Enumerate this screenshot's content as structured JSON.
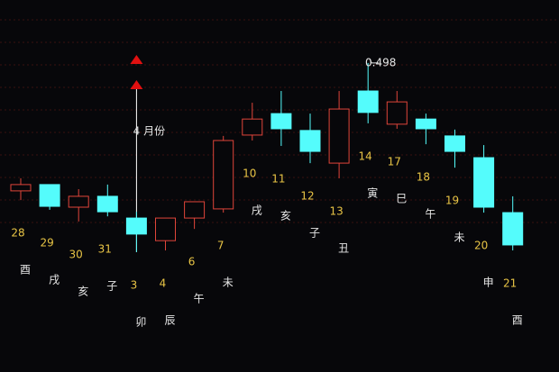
{
  "chart_data": {
    "type": "candlestick",
    "categories": [
      "28",
      "29",
      "30",
      "31",
      "3",
      "4",
      "6",
      "7",
      "10",
      "11",
      "12",
      "13",
      "14",
      "17",
      "18",
      "19",
      "20",
      "21"
    ],
    "branches": [
      "酉",
      "戌",
      "亥",
      "子",
      "卯",
      "辰",
      "午",
      "未",
      "戌",
      "亥",
      "子",
      "丑",
      "寅",
      "巳",
      "午",
      "未",
      "申",
      "酉"
    ],
    "open": [
      0.4533,
      0.4555,
      0.4476,
      0.4514,
      0.4438,
      0.4359,
      0.4438,
      0.447,
      0.4728,
      0.4803,
      0.4744,
      0.463,
      0.4882,
      0.4766,
      0.4784,
      0.4725,
      0.4649,
      0.4457
    ],
    "high": [
      0.4577,
      0.4555,
      0.4539,
      0.4555,
      0.446,
      0.4438,
      0.4495,
      0.4725,
      0.4841,
      0.4882,
      0.4803,
      0.4882,
      0.498,
      0.4882,
      0.4803,
      0.4747,
      0.4693,
      0.4514
    ],
    "low": [
      0.4501,
      0.4467,
      0.4426,
      0.4444,
      0.4319,
      0.4325,
      0.44,
      0.4457,
      0.4709,
      0.469,
      0.463,
      0.4577,
      0.4769,
      0.475,
      0.4696,
      0.4614,
      0.4457,
      0.4325
    ],
    "close": [
      0.4555,
      0.4479,
      0.4514,
      0.446,
      0.4382,
      0.4438,
      0.4495,
      0.4709,
      0.4784,
      0.475,
      0.4671,
      0.4819,
      0.4807,
      0.4844,
      0.475,
      0.4671,
      0.4476,
      0.4344
    ],
    "up_color": "#e0453a",
    "down_color": "#54fcfc",
    "ylim": [
      0.39,
      0.52
    ],
    "month_label": "4 月份",
    "month_index": 4,
    "high_label_index": 12
  }
}
